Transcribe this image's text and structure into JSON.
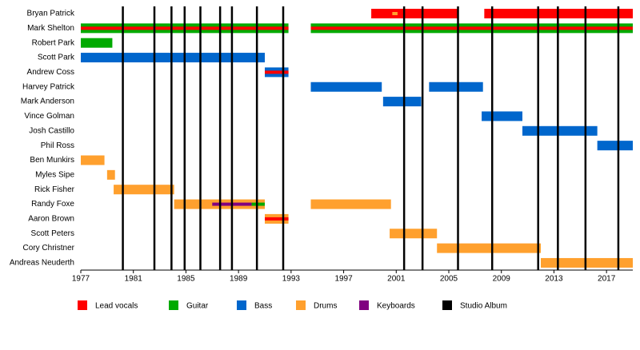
{
  "chart_data": {
    "type": "timeline",
    "xlim": [
      1977,
      2019
    ],
    "xticks": [
      1977,
      1981,
      1985,
      1989,
      1993,
      1997,
      2001,
      2005,
      2009,
      2013,
      2017
    ],
    "roles": [
      {
        "name": "Lead vocals",
        "color": "#ff0000"
      },
      {
        "name": "Guitar",
        "color": "#00aa00"
      },
      {
        "name": "Bass",
        "color": "#0066cc"
      },
      {
        "name": "Drums",
        "color": "#ffa02e"
      },
      {
        "name": "Keyboards",
        "color": "#800080"
      }
    ],
    "albums": {
      "name": "Studio Album",
      "color": "#000000",
      "values": [
        1980.2,
        1982.6,
        1983.9,
        1984.9,
        1986.1,
        1987.6,
        1988.5,
        1990.4,
        1992.4,
        2001.6,
        2003.0,
        2005.7,
        2008.3,
        2011.8,
        2013.3,
        2015.4,
        2017.9
      ]
    },
    "members": [
      {
        "name": "Bryan Patrick",
        "spans": [
          {
            "role": "Lead vocals",
            "start": 1999.1,
            "end": 2005.7
          },
          {
            "role": "Drums",
            "start": 2000.7,
            "end": 2001.1
          },
          {
            "role": "Lead vocals",
            "start": 2007.7,
            "end": 2019
          }
        ]
      },
      {
        "name": "Mark Shelton",
        "spans": [
          {
            "role": "Guitar",
            "start": 1977,
            "end": 1992.8
          },
          {
            "role": "Lead vocals",
            "start": 1977,
            "end": 1992.8
          },
          {
            "role": "Guitar",
            "start": 1994.5,
            "end": 2019
          },
          {
            "role": "Lead vocals",
            "start": 1994.5,
            "end": 2019
          }
        ]
      },
      {
        "name": "Robert Park",
        "spans": [
          {
            "role": "Guitar",
            "start": 1977,
            "end": 1979.4
          }
        ]
      },
      {
        "name": "Scott Park",
        "spans": [
          {
            "role": "Bass",
            "start": 1977,
            "end": 1991
          }
        ]
      },
      {
        "name": "Andrew Coss",
        "spans": [
          {
            "role": "Bass",
            "start": 1991,
            "end": 1992.8
          },
          {
            "role": "Lead vocals",
            "start": 1991,
            "end": 1992.8
          }
        ]
      },
      {
        "name": "Harvey Patrick",
        "spans": [
          {
            "role": "Bass",
            "start": 1994.5,
            "end": 1999.9
          },
          {
            "role": "Bass",
            "start": 2003.5,
            "end": 2007.6
          }
        ]
      },
      {
        "name": "Mark Anderson",
        "spans": [
          {
            "role": "Bass",
            "start": 2000,
            "end": 2002.9
          }
        ]
      },
      {
        "name": "Vince Golman",
        "spans": [
          {
            "role": "Bass",
            "start": 2007.5,
            "end": 2010.6
          }
        ]
      },
      {
        "name": "Josh Castillo",
        "spans": [
          {
            "role": "Bass",
            "start": 2010.6,
            "end": 2016.3
          }
        ]
      },
      {
        "name": "Phil Ross",
        "spans": [
          {
            "role": "Bass",
            "start": 2016.3,
            "end": 2019
          }
        ]
      },
      {
        "name": "Ben Munkirs",
        "spans": [
          {
            "role": "Drums",
            "start": 1977,
            "end": 1978.8
          }
        ]
      },
      {
        "name": "Myles Sipe",
        "spans": [
          {
            "role": "Drums",
            "start": 1979,
            "end": 1979.6
          }
        ]
      },
      {
        "name": "Rick Fisher",
        "spans": [
          {
            "role": "Drums",
            "start": 1979.5,
            "end": 1984.1
          }
        ]
      },
      {
        "name": "Randy Foxe",
        "spans": [
          {
            "role": "Drums",
            "start": 1984.1,
            "end": 1991
          },
          {
            "role": "Keyboards",
            "start": 1987,
            "end": 1990
          },
          {
            "role": "Guitar",
            "start": 1990,
            "end": 1991
          },
          {
            "role": "Drums",
            "start": 1994.5,
            "end": 2000.6
          }
        ]
      },
      {
        "name": "Aaron Brown",
        "spans": [
          {
            "role": "Drums",
            "start": 1991,
            "end": 1992.8
          },
          {
            "role": "Lead vocals",
            "start": 1991,
            "end": 1992.8
          }
        ]
      },
      {
        "name": "Scott Peters",
        "spans": [
          {
            "role": "Drums",
            "start": 2000.5,
            "end": 2004.1
          }
        ]
      },
      {
        "name": "Cory Christner",
        "spans": [
          {
            "role": "Drums",
            "start": 2004.1,
            "end": 2012
          }
        ]
      },
      {
        "name": "Andreas Neuderth",
        "spans": [
          {
            "role": "Drums",
            "start": 2012,
            "end": 2019
          }
        ]
      }
    ]
  }
}
